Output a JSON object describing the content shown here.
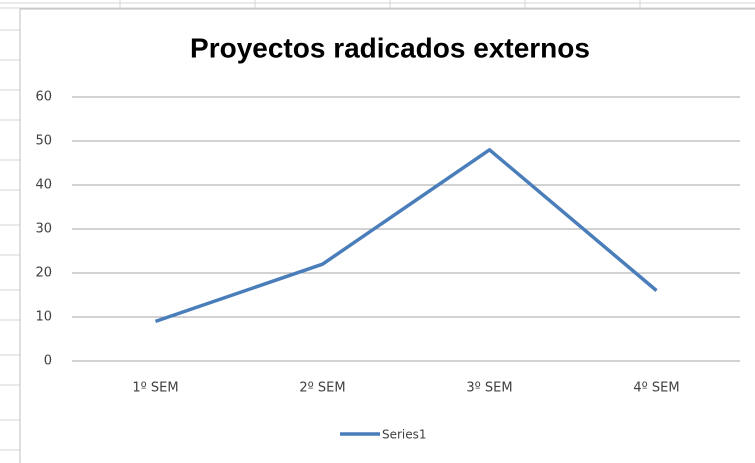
{
  "chart_data": {
    "type": "line",
    "title": "Proyectos radicados externos",
    "categories": [
      "1º SEM",
      "2º SEM",
      "3º SEM",
      "4º SEM"
    ],
    "series": [
      {
        "name": "Series1",
        "color": "#4a7ebb",
        "values": [
          9,
          22,
          48,
          16
        ]
      }
    ],
    "ylim": [
      0,
      60
    ],
    "yticks": [
      0,
      10,
      20,
      30,
      40,
      50,
      60
    ],
    "grid": true,
    "legend": "bottom"
  }
}
